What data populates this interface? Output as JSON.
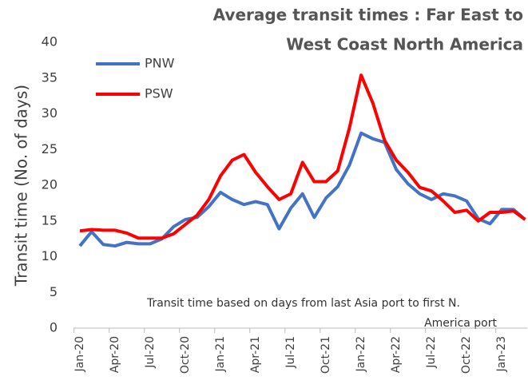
{
  "chart_data": {
    "type": "line",
    "title": [
      "Average transit times : Far East to",
      "West Coast North America"
    ],
    "y_label": "Transit time (No. of days)",
    "annotation": [
      "Transit time based on days from last Asia port to first N.",
      "America port"
    ],
    "categories": [
      "Jan-20",
      null,
      null,
      "Apr-20",
      null,
      null,
      "Jul-20",
      null,
      null,
      "Oct-20",
      null,
      null,
      "Jan-21",
      null,
      null,
      "Apr-21",
      null,
      null,
      "Jul-21",
      null,
      null,
      "Oct-21",
      null,
      null,
      "Jan-22",
      null,
      null,
      "Apr-22",
      null,
      null,
      "Jul-22",
      null,
      null,
      "Oct-22",
      null,
      null,
      "Jan-23",
      null,
      null
    ],
    "series": [
      {
        "name": "PNW",
        "color": "#4472c4",
        "values": [
          11.5,
          13.5,
          11.7,
          11.5,
          12.0,
          11.8,
          11.8,
          12.5,
          14.2,
          15.2,
          15.5,
          17.0,
          19.0,
          18.0,
          17.3,
          17.7,
          17.3,
          13.9,
          16.8,
          18.8,
          15.5,
          18.2,
          19.8,
          22.8,
          27.3,
          26.5,
          26.0,
          22.2,
          20.2,
          18.8,
          18.0,
          18.8,
          18.5,
          17.8,
          15.3,
          14.6,
          16.6,
          16.6,
          15.2
        ]
      },
      {
        "name": "PSW",
        "color": "#ff0000",
        "values": [
          13.6,
          13.8,
          13.7,
          13.7,
          13.3,
          12.6,
          12.6,
          12.6,
          13.2,
          14.5,
          15.8,
          18.0,
          21.3,
          23.5,
          24.3,
          21.8,
          19.8,
          18.0,
          18.8,
          23.2,
          20.5,
          20.5,
          22.0,
          28.0,
          35.4,
          31.5,
          26.3,
          23.5,
          21.8,
          19.7,
          19.2,
          17.8,
          16.2,
          16.5,
          15.0,
          16.2,
          16.2,
          16.4,
          15.2
        ]
      }
    ],
    "ylim": [
      0,
      40
    ],
    "yticks": [
      0,
      5,
      10,
      15,
      20,
      25,
      30,
      35,
      40
    ],
    "grid": false
  }
}
